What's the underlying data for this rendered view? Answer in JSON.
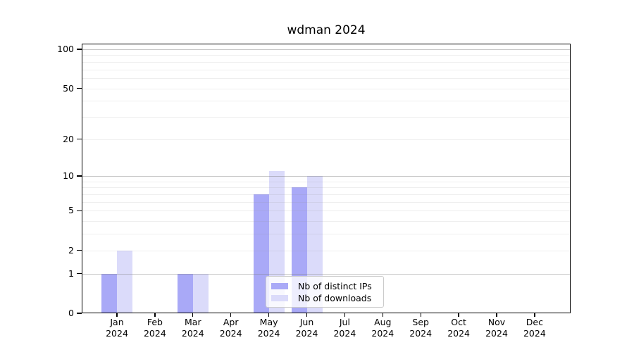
{
  "title": "wdman 2024",
  "chart_data": {
    "type": "bar",
    "title": "wdman 2024",
    "x": {
      "months": [
        "Jan",
        "Feb",
        "Mar",
        "Apr",
        "May",
        "Jun",
        "Jul",
        "Aug",
        "Sep",
        "Oct",
        "Nov",
        "Dec"
      ],
      "year": "2024"
    },
    "categories": [
      "Jan 2024",
      "Feb 2024",
      "Mar 2024",
      "Apr 2024",
      "May 2024",
      "Jun 2024",
      "Jul 2024",
      "Aug 2024",
      "Sep 2024",
      "Oct 2024",
      "Nov 2024",
      "Dec 2024"
    ],
    "series": [
      {
        "name": "Nb of distinct IPs",
        "color": "#a9a9f7",
        "values": [
          1,
          0,
          1,
          0,
          7,
          8,
          0,
          0,
          0,
          0,
          0,
          0
        ]
      },
      {
        "name": "Nb of downloads",
        "color": "#dbdbfa",
        "values": [
          2,
          0,
          1,
          0,
          11,
          10,
          0,
          0,
          0,
          0,
          0,
          0
        ]
      }
    ],
    "yscale": "log1p",
    "ylabel": "",
    "xlabel": "",
    "y_axis": {
      "tick_labels": [
        "0",
        "1",
        "2",
        "5",
        "10",
        "20",
        "50",
        "100"
      ],
      "tick_values": [
        0,
        1,
        2,
        5,
        10,
        20,
        50,
        100
      ],
      "decade_gridlines": [
        1,
        10,
        100
      ],
      "light_gridlines": [
        2,
        5,
        20,
        50,
        3,
        4,
        6,
        7,
        8,
        9,
        30,
        40,
        60,
        70,
        80,
        90
      ],
      "range_top_value": 110
    },
    "grid": true,
    "legend_position": "inside-bottom-center"
  },
  "legend": {
    "items": [
      {
        "label": "Nb of distinct IPs",
        "swatch_color": "#a9a9f7"
      },
      {
        "label": "Nb of downloads",
        "swatch_color": "#dbdbfa"
      }
    ]
  },
  "colors": {
    "bar_distinct_ips": "#a9a9f7",
    "bar_downloads": "#dbdbfa",
    "axis": "#000000",
    "decade_grid": "#c8c8c8",
    "light_grid": "#ececec",
    "legend_border": "#cbcbcb",
    "background": "#ffffff"
  }
}
